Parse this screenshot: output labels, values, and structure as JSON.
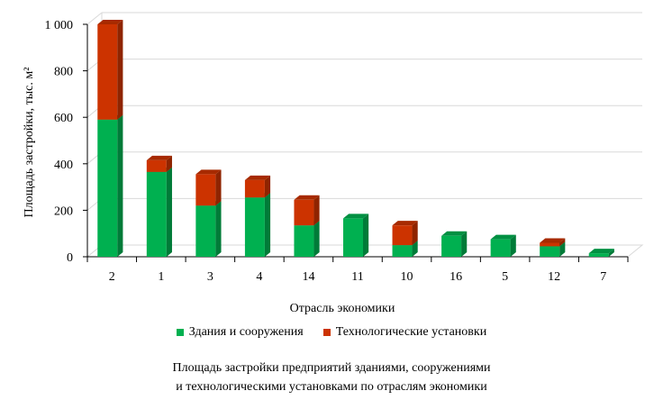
{
  "chart_data": {
    "type": "bar",
    "stacked": true,
    "style": "3d-column",
    "categories": [
      "2",
      "1",
      "3",
      "4",
      "14",
      "11",
      "10",
      "16",
      "5",
      "12",
      "7"
    ],
    "series": [
      {
        "name": "Здания и сооружения",
        "color": "#00b050",
        "values": [
          590,
          365,
          220,
          255,
          135,
          165,
          50,
          90,
          75,
          45,
          15
        ]
      },
      {
        "name": "Технологические установки",
        "color": "#cc3300",
        "values": [
          410,
          50,
          135,
          75,
          110,
          0,
          85,
          0,
          0,
          15,
          0
        ]
      }
    ],
    "xlabel": "Отрасль экономики",
    "ylabel": "Площадь застройки, тыс. м²",
    "ylim": [
      0,
      1000
    ],
    "yticks": [
      0,
      200,
      400,
      600,
      800,
      1000
    ],
    "ytick_labels": [
      "0",
      "200",
      "400",
      "600",
      "800",
      "1 000"
    ],
    "grid": true,
    "legend_position": "bottom"
  },
  "caption": {
    "line1": "Площадь застройки предприятий зданиями, сооружениями",
    "line2": "и технологическими установками по отраслям экономики"
  }
}
